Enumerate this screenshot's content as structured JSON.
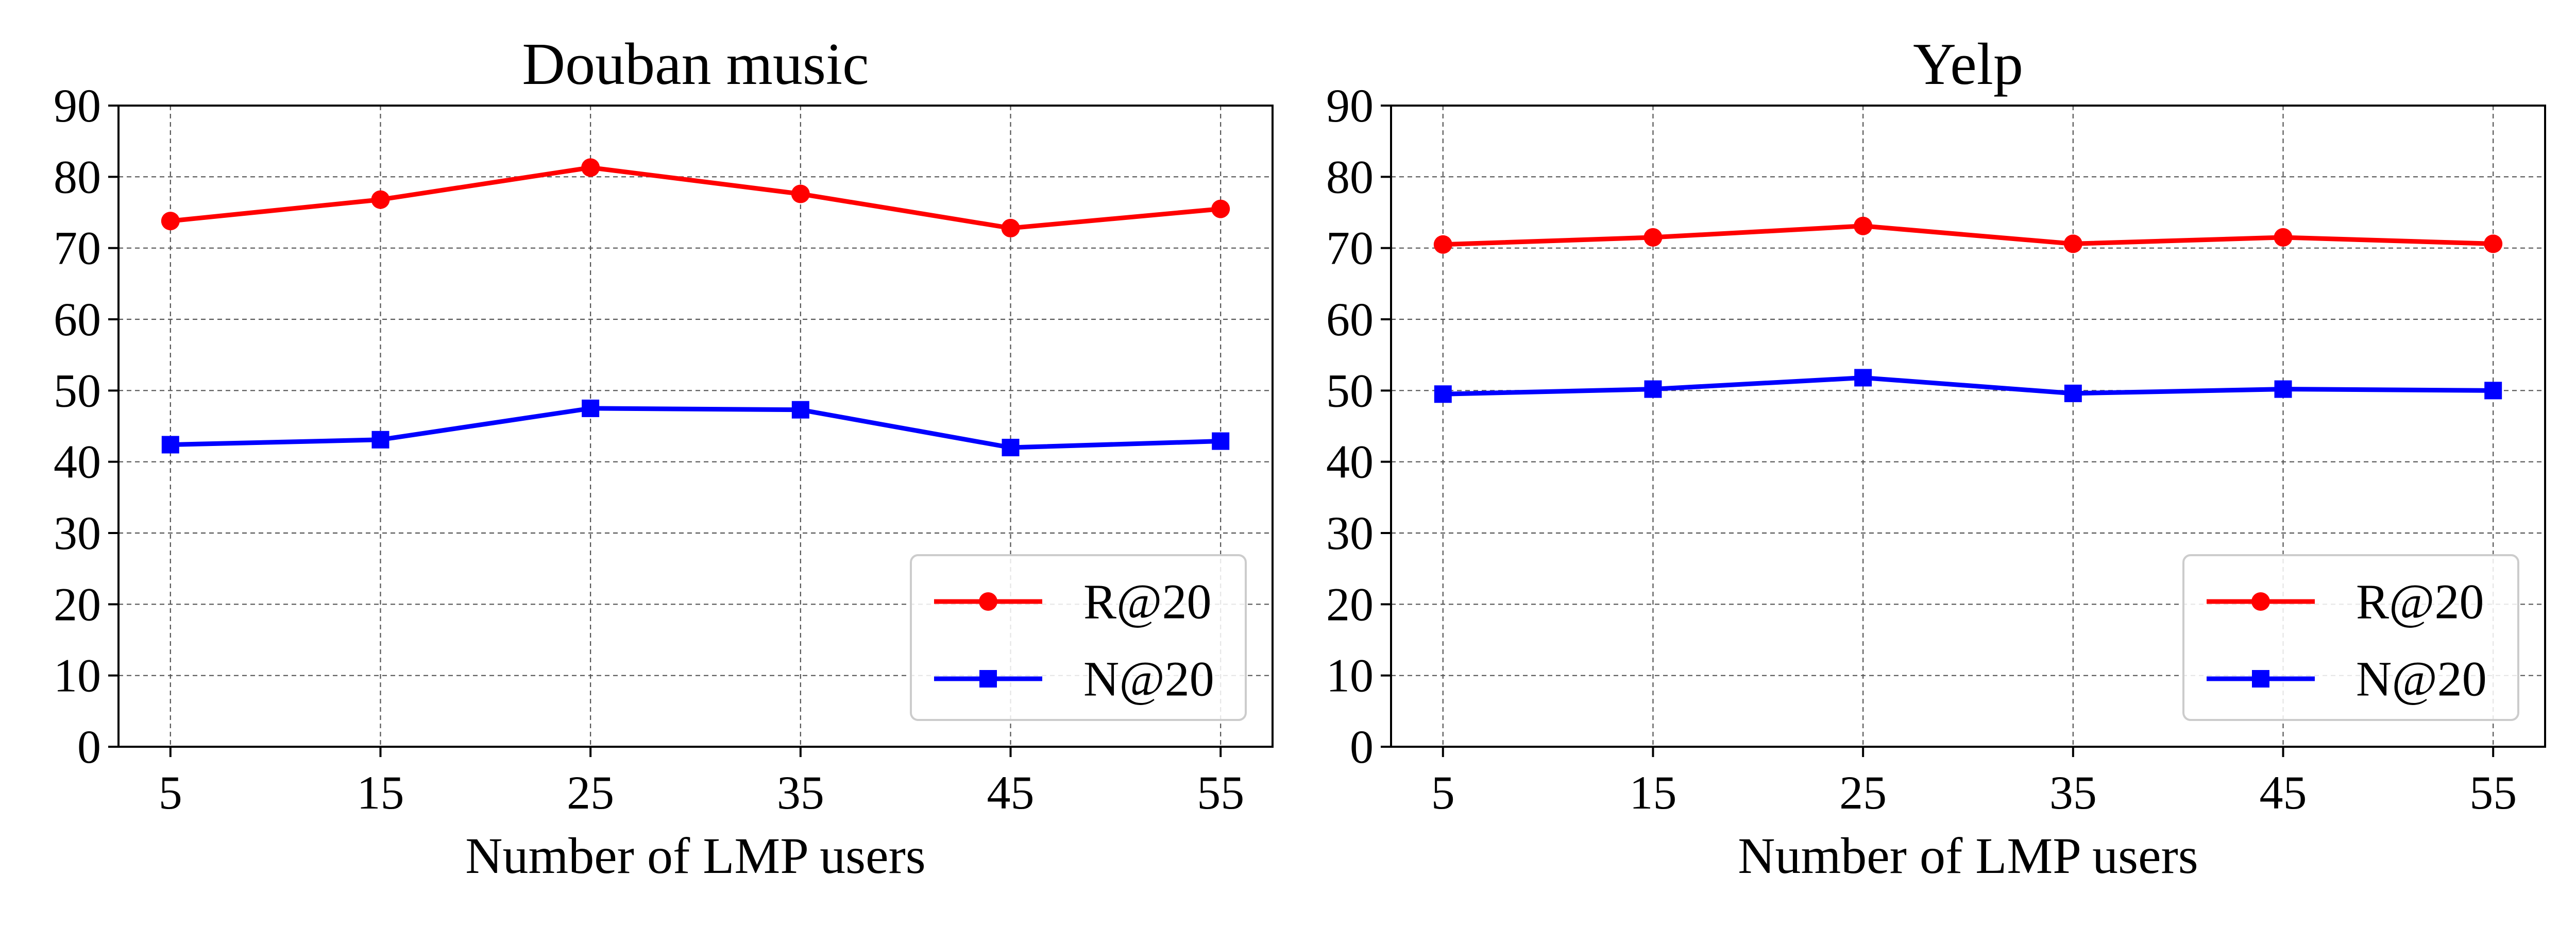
{
  "chart_data": [
    {
      "type": "line",
      "title": "Douban music",
      "xlabel": "Number of LMP users",
      "ylabel": "",
      "categories": [
        "5",
        "15",
        "25",
        "35",
        "45",
        "55"
      ],
      "yticks": [
        "0",
        "10",
        "20",
        "30",
        "40",
        "50",
        "60",
        "70",
        "80",
        "90"
      ],
      "ylim": [
        0,
        90
      ],
      "grid": true,
      "legend_position": "lower-right",
      "series": [
        {
          "name": "R@20",
          "color": "#ff0000",
          "marker": "circle",
          "values": [
            73.8,
            76.8,
            81.3,
            77.6,
            72.8,
            75.5
          ]
        },
        {
          "name": "N@20",
          "color": "#0000ff",
          "marker": "square",
          "values": [
            42.4,
            43.1,
            47.5,
            47.3,
            42.0,
            42.9
          ]
        }
      ]
    },
    {
      "type": "line",
      "title": "Yelp",
      "xlabel": "Number of LMP users",
      "ylabel": "",
      "categories": [
        "5",
        "15",
        "25",
        "35",
        "45",
        "55"
      ],
      "yticks": [
        "0",
        "10",
        "20",
        "30",
        "40",
        "50",
        "60",
        "70",
        "80",
        "90"
      ],
      "ylim": [
        0,
        90
      ],
      "grid": true,
      "legend_position": "lower-right",
      "series": [
        {
          "name": "R@20",
          "color": "#ff0000",
          "marker": "circle",
          "values": [
            70.5,
            71.5,
            73.1,
            70.6,
            71.5,
            70.6
          ]
        },
        {
          "name": "N@20",
          "color": "#0000ff",
          "marker": "square",
          "values": [
            49.5,
            50.2,
            51.8,
            49.6,
            50.2,
            50.0
          ]
        }
      ]
    }
  ]
}
